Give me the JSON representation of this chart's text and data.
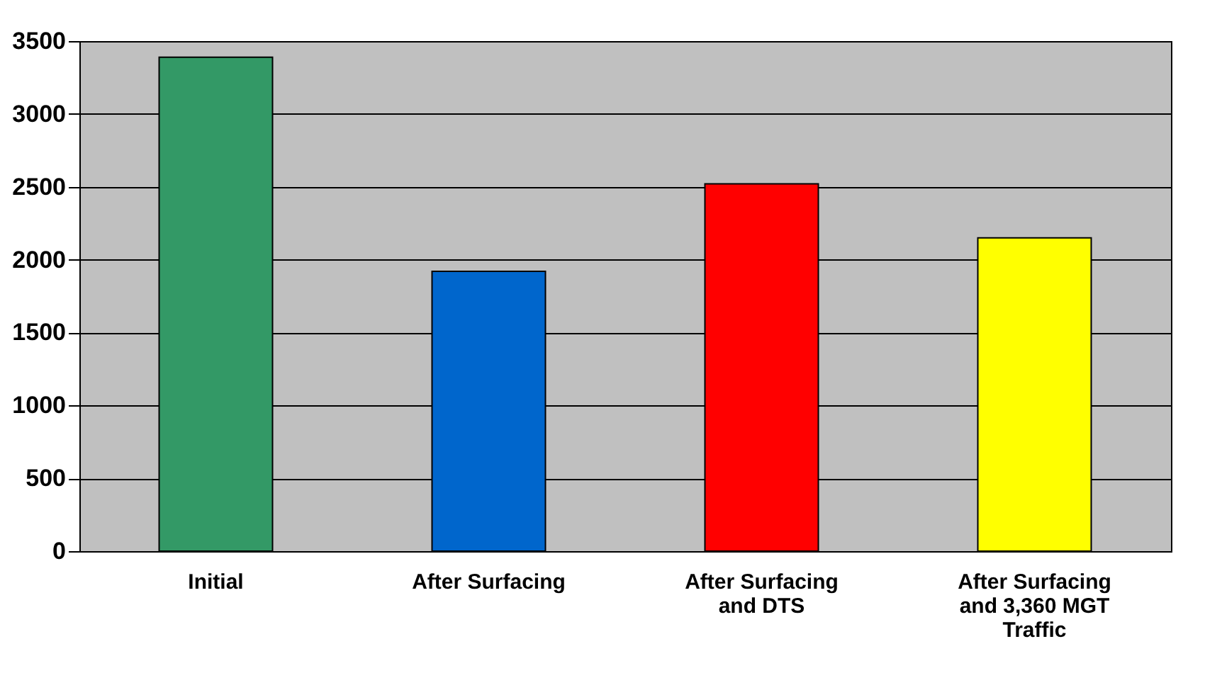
{
  "chart_data": {
    "type": "bar",
    "categories": [
      "Initial",
      "After Surfacing",
      "After Surfacing\nand DTS",
      "After Surfacing\nand 3,360 MGT\nTraffic"
    ],
    "values": [
      3390,
      1920,
      2520,
      2150
    ],
    "colors": [
      "#339966",
      "#0066cc",
      "#ff0000",
      "#ffff00"
    ],
    "ylim": [
      0,
      3500
    ],
    "yticks": [
      0,
      500,
      1000,
      1500,
      2000,
      2500,
      3000,
      3500
    ],
    "grid": "y",
    "legend": false
  }
}
